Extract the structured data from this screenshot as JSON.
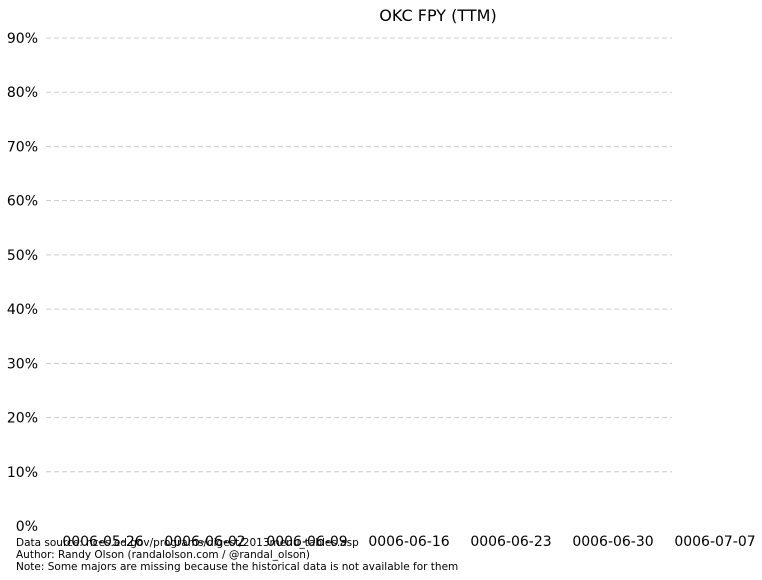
{
  "chart_data": {
    "type": "line",
    "title": "OKC FPY (TTM)",
    "xlabel": "",
    "ylabel": "",
    "x_ticks": [
      "0006-05-26",
      "0006-06-02",
      "0006-06-09",
      "0006-06-16",
      "0006-06-23",
      "0006-06-30",
      "0006-07-07"
    ],
    "y_ticks": [
      "0%",
      "10%",
      "20%",
      "30%",
      "40%",
      "50%",
      "60%",
      "70%",
      "80%",
      "90%"
    ],
    "ylim": [
      0,
      90
    ],
    "grid": "horizontal-dashed",
    "series": []
  },
  "footer": {
    "source": "Data source: nces.ed.gov/programs/digest/2013menu_tables.asp",
    "author": "Author: Randy Olson (randalolson.com / @randal_olson)",
    "note": "Note: Some majors are missing because the historical data is not available for them"
  }
}
